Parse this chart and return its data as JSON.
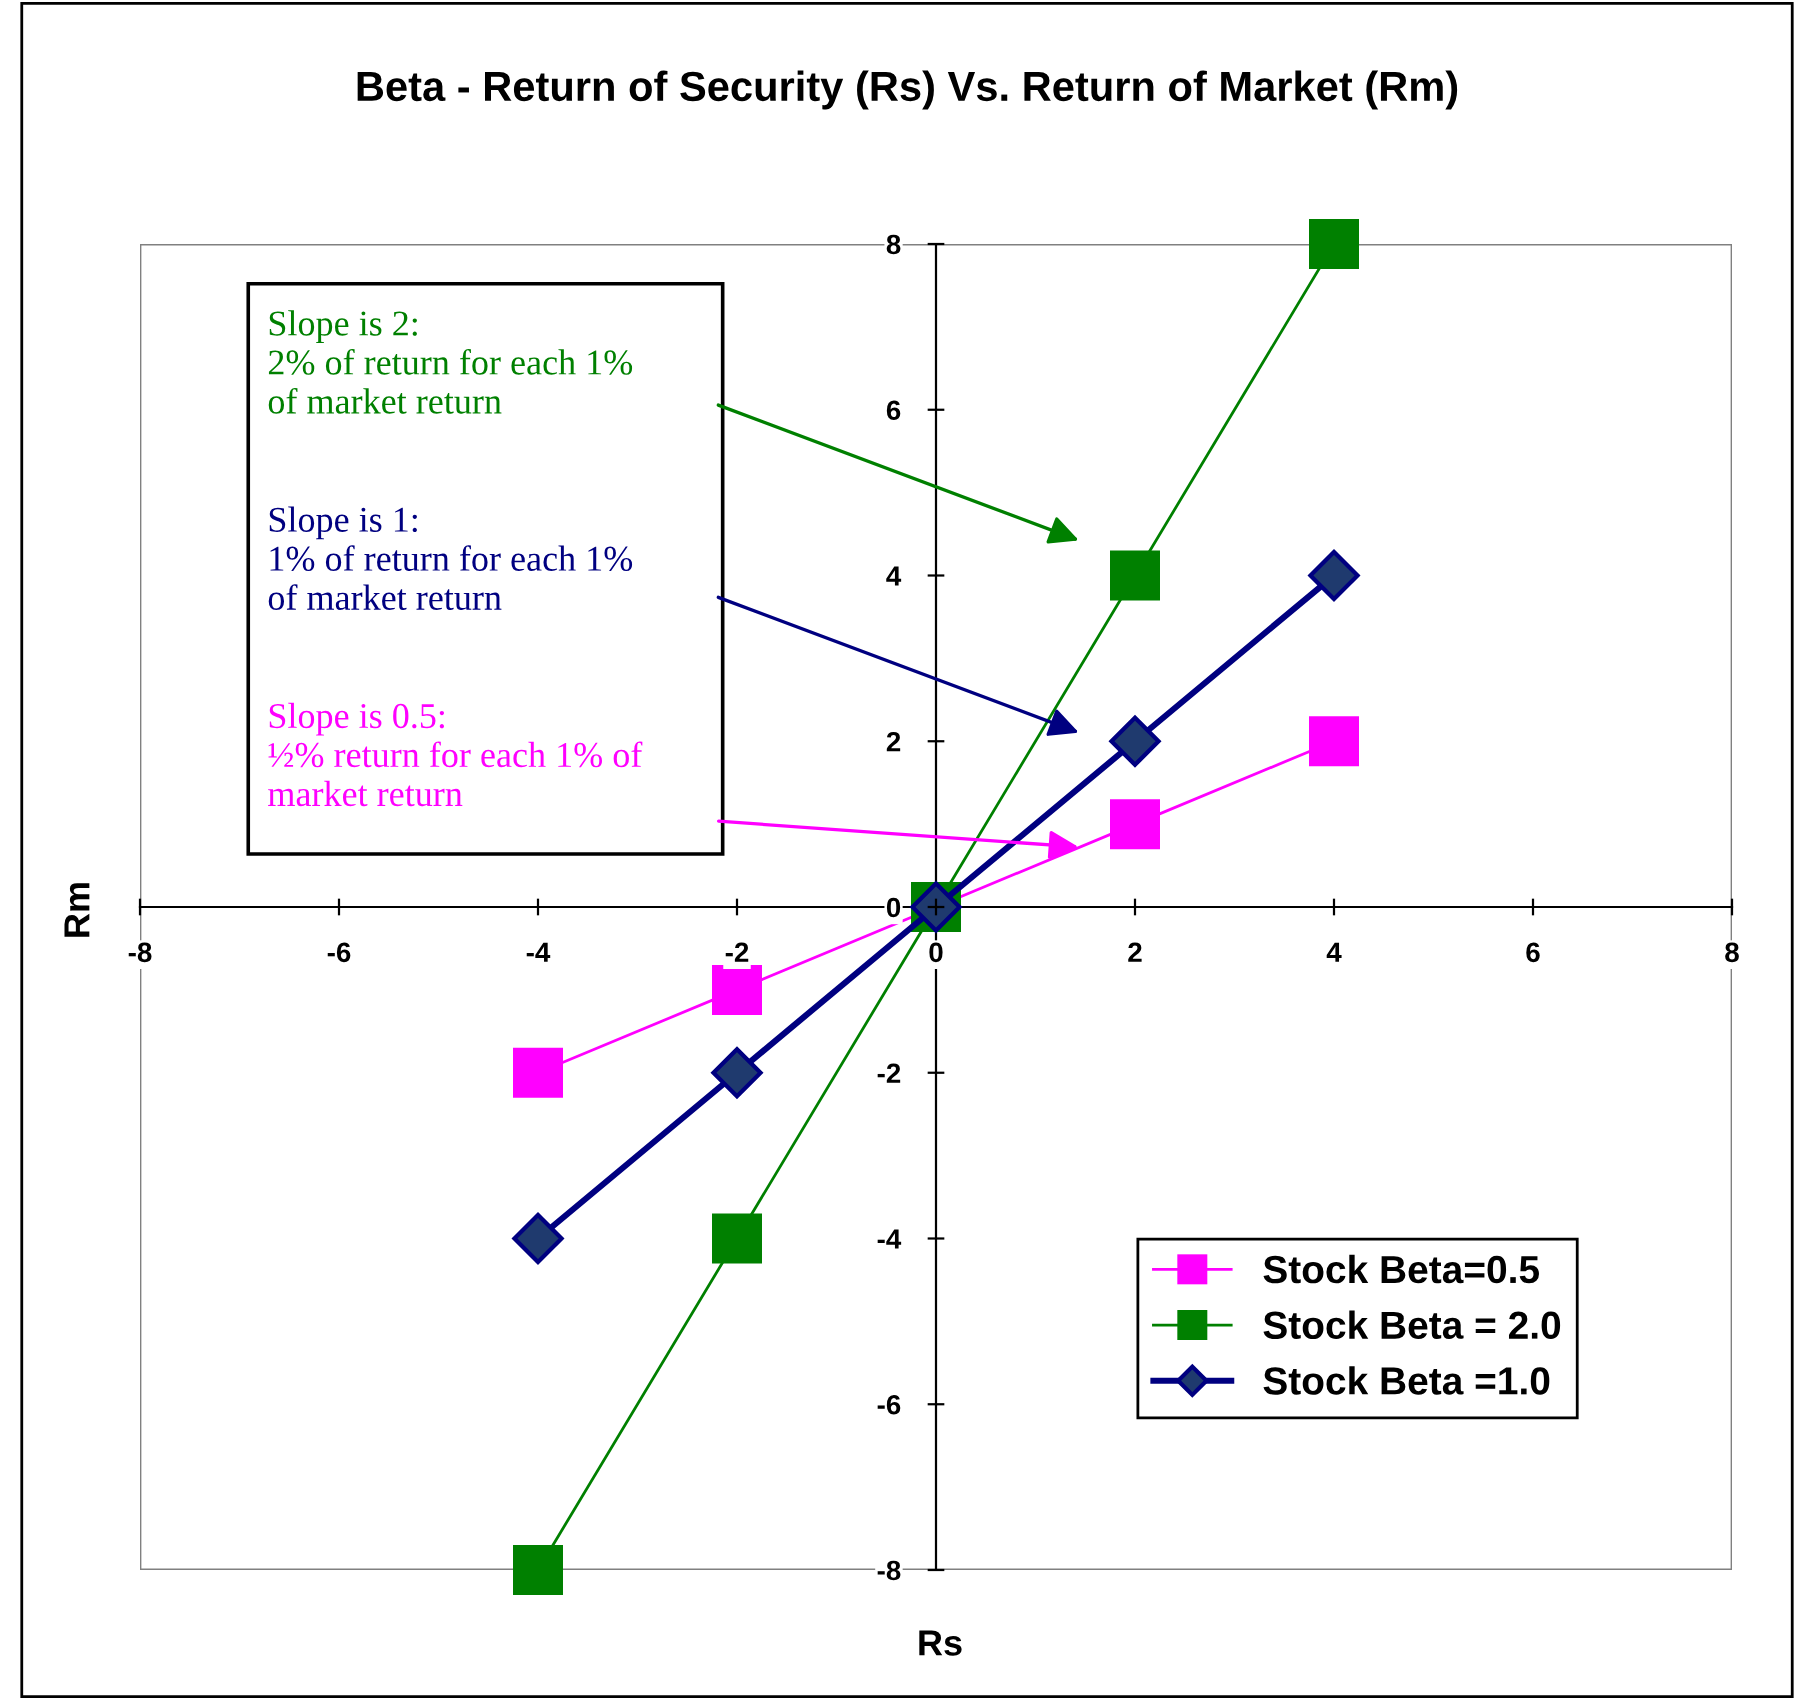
{
  "chart_data": {
    "type": "line",
    "title": "Beta - Return of Security (Rs) Vs. Return of Market (Rm)",
    "xlabel": "Rs",
    "ylabel": "Rm",
    "xlim": [
      -8,
      8
    ],
    "ylim": [
      -8,
      8
    ],
    "xticks": [
      -8,
      -6,
      -4,
      -2,
      0,
      2,
      4,
      6,
      8
    ],
    "yticks": [
      -8,
      -6,
      -4,
      -2,
      0,
      2,
      4,
      6,
      8
    ],
    "grid": false,
    "legend": "lower right",
    "series": [
      {
        "name": "Stock Beta=0.5",
        "color": "#ff00ff",
        "marker": "square",
        "x": [
          -4,
          -2,
          0,
          2,
          4
        ],
        "values": [
          -2,
          -1,
          0,
          1,
          2
        ]
      },
      {
        "name": "Stock Beta = 2.0",
        "color": "#008000",
        "marker": "square",
        "x": [
          -4,
          -2,
          0,
          2,
          4
        ],
        "values": [
          -8,
          -4,
          0,
          4,
          8
        ]
      },
      {
        "name": "Stock Beta =1.0",
        "color": "#000080",
        "marker": "diamond",
        "x": [
          -4,
          -2,
          0,
          2,
          4
        ],
        "values": [
          -4,
          -2,
          0,
          2,
          4
        ]
      }
    ],
    "annotations": [
      "Slope is 2:\n2% of return for each 1%\nof market return",
      "Slope is 1:\n1% of return for each 1%\nof market return",
      "Slope is 0.5:\n½% return for each 1% of\nmarket return"
    ]
  }
}
